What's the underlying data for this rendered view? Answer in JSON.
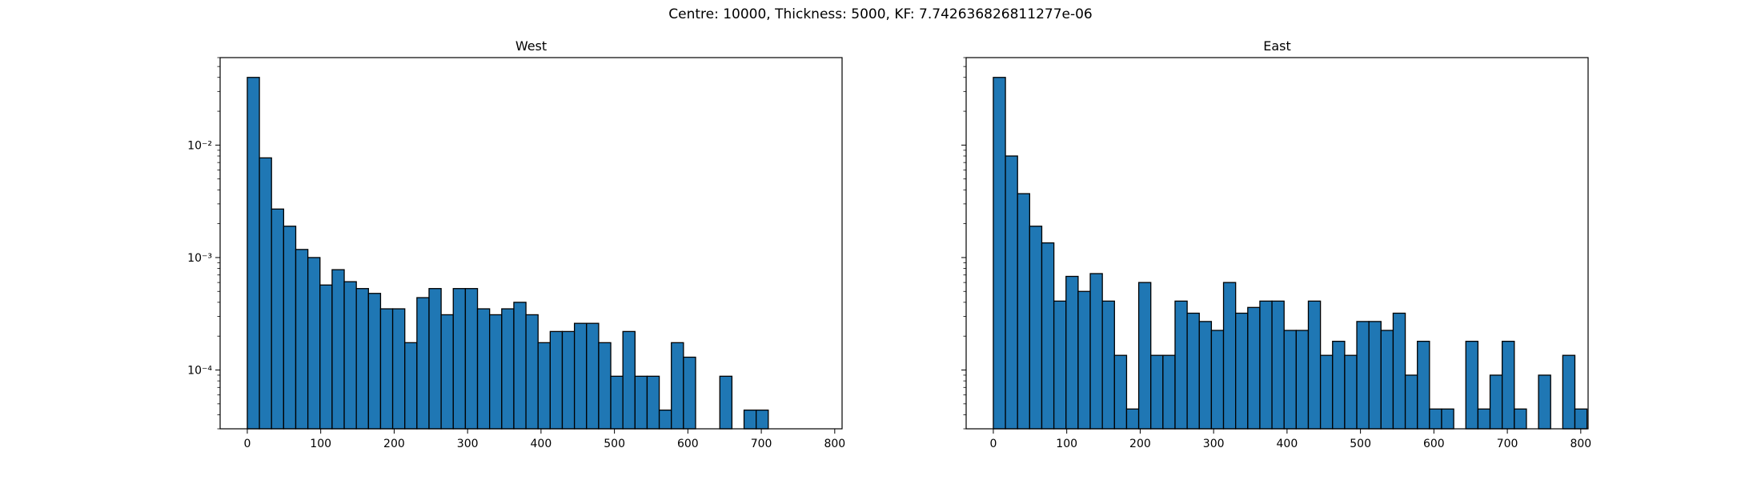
{
  "figure": {
    "suptitle": "Centre: 10000, Thickness: 5000, KF: 7.742636826811277e-06"
  },
  "chart_data": [
    {
      "type": "bar",
      "title": "West",
      "xlabel": "",
      "ylabel": "",
      "xscale": "linear",
      "yscale": "log",
      "xlim": [
        -37,
        810
      ],
      "ylim": [
        3e-05,
        0.06
      ],
      "xticks": [
        0,
        100,
        200,
        300,
        400,
        500,
        600,
        700,
        800
      ],
      "yticks": [
        {
          "value": 0.0001,
          "label": "10⁻⁴"
        },
        {
          "value": 0.001,
          "label": "10⁻³"
        },
        {
          "value": 0.01,
          "label": "10⁻²"
        }
      ],
      "grid": false,
      "bin_width": 16.5,
      "bin_edges_start": 0,
      "bar_color": "#1f77b4",
      "values": [
        0.04,
        0.0077,
        0.0027,
        0.0019,
        0.00118,
        0.001,
        0.00057,
        0.00078,
        0.00061,
        0.00053,
        0.00048,
        0.00035,
        0.00035,
        0.000175,
        0.00044,
        0.00053,
        0.00031,
        0.00053,
        0.00053,
        0.00035,
        0.00031,
        0.00035,
        0.0004,
        0.00031,
        0.000175,
        0.00022,
        0.00022,
        0.00026,
        0.00026,
        0.000175,
        8.8e-05,
        0.00022,
        8.8e-05,
        8.8e-05,
        4.4e-05,
        0.000175,
        0.00013,
        0,
        0,
        8.8e-05,
        0,
        4.4e-05,
        4.4e-05,
        0,
        0,
        0,
        0
      ]
    },
    {
      "type": "bar",
      "title": "East",
      "xlabel": "",
      "ylabel": "",
      "xscale": "linear",
      "yscale": "log",
      "xlim": [
        -37,
        810
      ],
      "ylim": [
        3e-05,
        0.06
      ],
      "xticks": [
        0,
        100,
        200,
        300,
        400,
        500,
        600,
        700,
        800
      ],
      "yticks": [
        {
          "value": 0.0001,
          "label": ""
        },
        {
          "value": 0.001,
          "label": ""
        },
        {
          "value": 0.01,
          "label": ""
        }
      ],
      "grid": false,
      "bin_width": 16.5,
      "bin_edges_start": 0,
      "bar_color": "#1f77b4",
      "values": [
        0.04,
        0.008,
        0.0037,
        0.0019,
        0.00135,
        0.00041,
        0.00068,
        0.0005,
        0.00072,
        0.00041,
        0.000135,
        4.5e-05,
        0.0006,
        0.000135,
        0.000135,
        0.00041,
        0.00032,
        0.00027,
        0.000225,
        0.0006,
        0.00032,
        0.00036,
        0.00041,
        0.00041,
        0.000225,
        0.000225,
        0.00041,
        0.000135,
        0.00018,
        0.000135,
        0.00027,
        0.00027,
        0.000225,
        0.00032,
        9e-05,
        0.00018,
        4.5e-05,
        4.5e-05,
        0,
        0.00018,
        4.5e-05,
        9e-05,
        0.00018,
        4.5e-05,
        0,
        9e-05,
        0,
        0.000135,
        4.5e-05
      ]
    }
  ]
}
